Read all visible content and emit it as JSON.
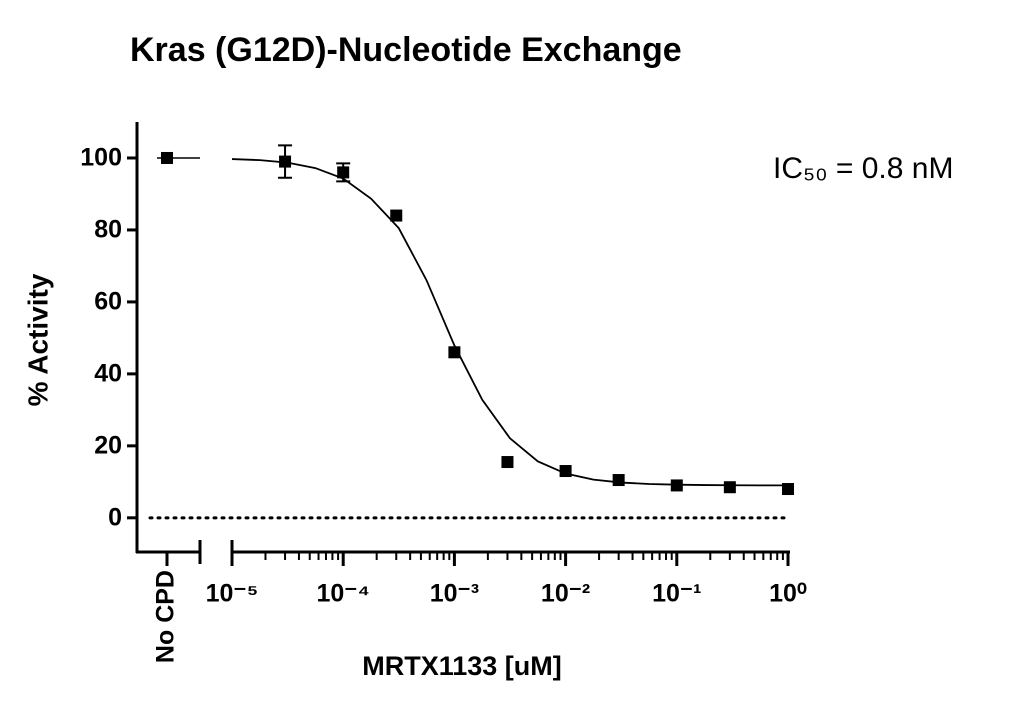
{
  "chart_data": {
    "type": "scatter",
    "title": "Kras (G12D)-Nucleotide Exchange",
    "x_label": "MRTX1133 [uM]",
    "y_label": "% Activity",
    "annotation": "IC₅₀ = 0.8 nM",
    "log_x": true,
    "color": "#000000",
    "xlim": [
      1e-05,
      1
    ],
    "xticks": [
      {
        "value": 1e-05,
        "label": "10⁻⁵"
      },
      {
        "value": 0.0001,
        "label": "10⁻⁴"
      },
      {
        "value": 0.001,
        "label": "10⁻³"
      },
      {
        "value": 0.01,
        "label": "10⁻²"
      },
      {
        "value": 0.1,
        "label": "10⁻¹"
      },
      {
        "value": 1,
        "label": "10⁰"
      }
    ],
    "ylim": [
      -9.5,
      110
    ],
    "yticks": [
      0,
      20,
      40,
      60,
      80,
      100
    ],
    "baseline": 0,
    "control": {
      "label": "No CPD",
      "value": 100
    },
    "x": [
      3e-05,
      0.0001,
      0.0003,
      0.001,
      0.003,
      0.01,
      0.03,
      0.1,
      0.3,
      1
    ],
    "values": [
      99,
      96,
      84,
      46,
      15.5,
      13,
      10.5,
      9,
      8.5,
      8
    ],
    "errors": [
      4.5,
      2.5,
      null,
      null,
      null,
      null,
      null,
      null,
      null,
      null
    ],
    "fit": {
      "x": [
        1e-05,
        1.78e-05,
        3.16e-05,
        5.62e-05,
        0.0001,
        0.000178,
        0.000316,
        0.000562,
        0.001,
        0.00178,
        0.00316,
        0.00562,
        0.01,
        0.0178,
        0.0316,
        0.0562,
        0.1,
        0.178,
        0.316,
        0.562,
        1
      ],
      "values": [
        99.7,
        99.4,
        98.7,
        97.2,
        94.3,
        88.7,
        80.5,
        66,
        47.9,
        32.8,
        22.1,
        15.7,
        12.3,
        10.6,
        9.8,
        9.4,
        9.2,
        9.1,
        9.05,
        9.02,
        9.01
      ]
    }
  }
}
